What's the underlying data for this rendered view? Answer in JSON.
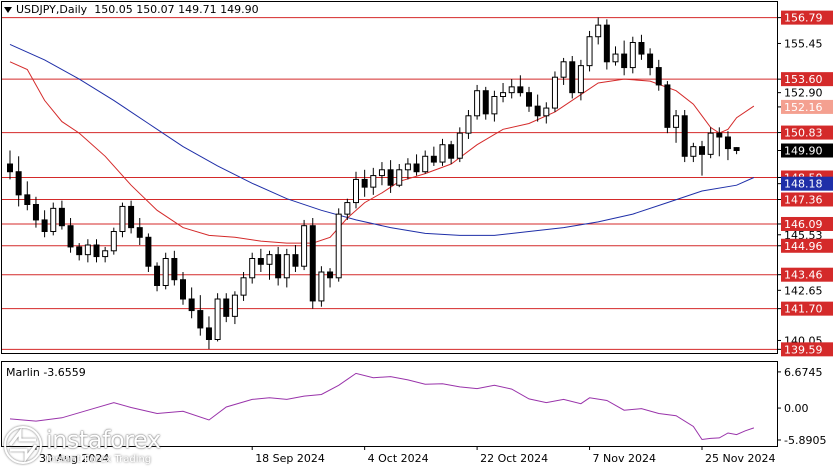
{
  "header": {
    "symbol": "USDJPY,Daily",
    "ohlc": "150.05 150.07 149.71 149.90"
  },
  "indicator": {
    "label": "Marlin -3.6559"
  },
  "watermark": {
    "brand": "instaforex",
    "tagline": "Instant Forex Trading"
  },
  "colors": {
    "bull": "#ffffff",
    "bear": "#000000",
    "ma_fast": "#d42a2a",
    "ma_slow": "#1f2fa8",
    "levels": "#d42a2a",
    "marlin": "#9933aa",
    "grid_border": "#000000"
  },
  "chart_data": [
    {
      "type": "candlestick",
      "title": "USDJPY,Daily",
      "ylim": [
        139.4,
        157.6
      ],
      "y_ticks": [
        {
          "value": 156.79,
          "label": "156.79",
          "highlight": "level"
        },
        {
          "value": 155.45,
          "label": "155.45"
        },
        {
          "value": 153.6,
          "label": "153.60",
          "highlight": "level"
        },
        {
          "value": 152.9,
          "label": "152.90"
        },
        {
          "value": 152.16,
          "label": "152.16",
          "highlight": "ma"
        },
        {
          "value": 150.83,
          "label": "150.83",
          "highlight": "level"
        },
        {
          "value": 149.9,
          "label": "149.90",
          "highlight": "price"
        },
        {
          "value": 148.5,
          "label": "148.50",
          "highlight": "level"
        },
        {
          "value": 148.18,
          "label": "148.18",
          "highlight": "ma_slow"
        },
        {
          "value": 147.36,
          "label": "147.36",
          "highlight": "level"
        },
        {
          "value": 146.09,
          "label": "146.09",
          "highlight": "level"
        },
        {
          "value": 145.53,
          "label": "145.53"
        },
        {
          "value": 144.96,
          "label": "144.96",
          "highlight": "level"
        },
        {
          "value": 143.46,
          "label": "143.46",
          "highlight": "level"
        },
        {
          "value": 142.65,
          "label": "142.65"
        },
        {
          "value": 141.7,
          "label": "141.70",
          "highlight": "level"
        },
        {
          "value": 140.05,
          "label": "140.05"
        },
        {
          "value": 139.59,
          "label": "139.59",
          "highlight": "level"
        }
      ],
      "levels": [
        156.79,
        153.6,
        150.83,
        148.5,
        147.36,
        146.09,
        144.96,
        143.46,
        141.7,
        139.59
      ],
      "x_labels": [
        {
          "index": 3,
          "label": "30 Aug 2024"
        },
        {
          "index": 28,
          "label": "18 Sep 2024"
        },
        {
          "index": 41,
          "label": "4 Oct 2024"
        },
        {
          "index": 54,
          "label": "22 Oct 2024"
        },
        {
          "index": 67,
          "label": "7 Nov 2024"
        },
        {
          "index": 80,
          "label": "25 Nov 2024"
        }
      ],
      "candles": [
        [
          149.2,
          149.9,
          148.4,
          148.8
        ],
        [
          148.8,
          149.6,
          147.0,
          147.6
        ],
        [
          147.6,
          148.3,
          146.8,
          147.1
        ],
        [
          147.1,
          147.5,
          145.9,
          146.3
        ],
        [
          146.3,
          146.8,
          145.4,
          145.7
        ],
        [
          145.7,
          147.2,
          145.5,
          146.9
        ],
        [
          146.9,
          147.3,
          145.8,
          146.0
        ],
        [
          146.0,
          146.4,
          144.6,
          144.9
        ],
        [
          144.9,
          145.1,
          144.2,
          144.5
        ],
        [
          144.5,
          145.3,
          144.1,
          145.0
        ],
        [
          145.0,
          145.3,
          144.1,
          144.4
        ],
        [
          144.4,
          144.9,
          144.1,
          144.7
        ],
        [
          144.7,
          145.9,
          144.5,
          145.7
        ],
        [
          145.7,
          147.2,
          145.4,
          147.0
        ],
        [
          147.0,
          147.3,
          145.6,
          145.9
        ],
        [
          145.9,
          146.4,
          145.0,
          145.4
        ],
        [
          145.4,
          145.6,
          143.6,
          143.9
        ],
        [
          143.9,
          144.1,
          142.6,
          142.9
        ],
        [
          142.9,
          144.6,
          142.7,
          144.3
        ],
        [
          144.3,
          144.7,
          142.9,
          143.2
        ],
        [
          143.2,
          143.6,
          141.9,
          142.2
        ],
        [
          142.2,
          142.8,
          141.2,
          141.6
        ],
        [
          141.6,
          142.4,
          140.3,
          140.7
        ],
        [
          140.7,
          141.3,
          139.6,
          140.1
        ],
        [
          140.1,
          142.5,
          140.0,
          142.2
        ],
        [
          142.2,
          142.5,
          141.0,
          141.3
        ],
        [
          141.3,
          142.6,
          140.9,
          142.4
        ],
        [
          142.4,
          143.6,
          142.1,
          143.3
        ],
        [
          143.3,
          144.6,
          143.0,
          144.3
        ],
        [
          144.3,
          144.8,
          143.6,
          144.0
        ],
        [
          144.0,
          144.7,
          143.2,
          144.5
        ],
        [
          144.5,
          144.9,
          142.9,
          143.3
        ],
        [
          143.3,
          144.8,
          142.8,
          144.5
        ],
        [
          144.5,
          145.0,
          143.6,
          143.9
        ],
        [
          143.9,
          146.3,
          143.7,
          146.0
        ],
        [
          146.0,
          146.4,
          141.7,
          142.1
        ],
        [
          142.1,
          143.9,
          141.8,
          143.6
        ],
        [
          143.6,
          143.8,
          142.8,
          143.3
        ],
        [
          143.3,
          146.9,
          143.1,
          146.6
        ],
        [
          146.6,
          147.4,
          146.3,
          147.2
        ],
        [
          147.2,
          148.8,
          146.9,
          148.4
        ],
        [
          148.4,
          148.9,
          147.5,
          148.0
        ],
        [
          148.0,
          149.0,
          147.6,
          148.6
        ],
        [
          148.6,
          149.3,
          148.1,
          148.9
        ],
        [
          148.9,
          149.4,
          147.7,
          148.1
        ],
        [
          148.1,
          149.2,
          148.0,
          148.9
        ],
        [
          148.9,
          149.5,
          148.4,
          149.2
        ],
        [
          149.2,
          149.7,
          148.6,
          148.8
        ],
        [
          148.8,
          149.9,
          148.7,
          149.6
        ],
        [
          149.6,
          150.1,
          149.1,
          149.3
        ],
        [
          149.3,
          150.5,
          149.1,
          150.2
        ],
        [
          150.2,
          150.4,
          149.2,
          149.5
        ],
        [
          149.5,
          151.1,
          149.3,
          150.8
        ],
        [
          150.8,
          152.0,
          150.5,
          151.7
        ],
        [
          151.7,
          153.3,
          151.5,
          153.0
        ],
        [
          153.0,
          153.2,
          151.5,
          151.8
        ],
        [
          151.8,
          153.0,
          151.4,
          152.7
        ],
        [
          152.7,
          153.4,
          152.4,
          152.9
        ],
        [
          152.9,
          153.6,
          152.6,
          153.2
        ],
        [
          153.2,
          153.8,
          152.7,
          152.9
        ],
        [
          152.9,
          153.2,
          151.9,
          152.2
        ],
        [
          152.2,
          152.8,
          151.4,
          151.7
        ],
        [
          151.7,
          152.4,
          151.3,
          152.1
        ],
        [
          152.1,
          154.0,
          151.9,
          153.7
        ],
        [
          153.7,
          154.7,
          153.3,
          154.5
        ],
        [
          154.5,
          154.8,
          152.6,
          152.9
        ],
        [
          152.9,
          154.6,
          152.5,
          154.3
        ],
        [
          154.3,
          156.1,
          154.0,
          155.8
        ],
        [
          155.8,
          156.8,
          155.4,
          156.4
        ],
        [
          156.4,
          156.7,
          154.1,
          154.5
        ],
        [
          154.5,
          155.3,
          154.3,
          154.9
        ],
        [
          154.9,
          155.6,
          153.8,
          154.2
        ],
        [
          154.2,
          155.8,
          153.9,
          155.5
        ],
        [
          155.5,
          155.9,
          154.6,
          154.9
        ],
        [
          154.9,
          155.2,
          153.8,
          154.2
        ],
        [
          154.2,
          154.6,
          153.0,
          153.3
        ],
        [
          153.3,
          153.5,
          150.8,
          151.1
        ],
        [
          151.1,
          152.0,
          150.3,
          151.7
        ],
        [
          151.7,
          152.0,
          149.3,
          149.6
        ],
        [
          149.6,
          150.3,
          149.3,
          150.1
        ],
        [
          150.1,
          150.4,
          148.6,
          149.7
        ],
        [
          149.7,
          151.1,
          149.5,
          150.8
        ],
        [
          150.8,
          151.1,
          149.6,
          150.6
        ],
        [
          150.6,
          150.9,
          149.4,
          150.0
        ],
        [
          150.05,
          150.07,
          149.71,
          149.9
        ]
      ],
      "ma_fast": [
        [
          0,
          154.5
        ],
        [
          2,
          154.1
        ],
        [
          4,
          152.5
        ],
        [
          6,
          151.4
        ],
        [
          8,
          150.8
        ],
        [
          11,
          149.6
        ],
        [
          14,
          148.1
        ],
        [
          17,
          146.8
        ],
        [
          20,
          145.9
        ],
        [
          23,
          145.5
        ],
        [
          26,
          145.4
        ],
        [
          29,
          145.2
        ],
        [
          32,
          145.1
        ],
        [
          35,
          145.1
        ],
        [
          37,
          145.4
        ],
        [
          39,
          146.4
        ],
        [
          41,
          147.2
        ],
        [
          43,
          147.7
        ],
        [
          45,
          148.3
        ],
        [
          48,
          148.7
        ],
        [
          51,
          149.2
        ],
        [
          54,
          150.2
        ],
        [
          57,
          151.0
        ],
        [
          60,
          151.3
        ],
        [
          63,
          151.9
        ],
        [
          66,
          152.8
        ],
        [
          68,
          153.4
        ],
        [
          71,
          153.6
        ],
        [
          74,
          153.5
        ],
        [
          77,
          153.0
        ],
        [
          79,
          152.3
        ],
        [
          80,
          151.7
        ],
        [
          81,
          151.1
        ],
        [
          82,
          150.8
        ],
        [
          83,
          151.0
        ],
        [
          84,
          151.6
        ],
        [
          86,
          152.2
        ]
      ],
      "ma_slow": [
        [
          0,
          155.4
        ],
        [
          4,
          154.6
        ],
        [
          8,
          153.6
        ],
        [
          12,
          152.5
        ],
        [
          16,
          151.3
        ],
        [
          20,
          150.1
        ],
        [
          24,
          149.1
        ],
        [
          28,
          148.2
        ],
        [
          32,
          147.4
        ],
        [
          36,
          146.8
        ],
        [
          40,
          146.3
        ],
        [
          44,
          145.9
        ],
        [
          48,
          145.6
        ],
        [
          52,
          145.5
        ],
        [
          56,
          145.5
        ],
        [
          60,
          145.7
        ],
        [
          64,
          145.9
        ],
        [
          68,
          146.2
        ],
        [
          72,
          146.6
        ],
        [
          76,
          147.2
        ],
        [
          80,
          147.8
        ],
        [
          84,
          148.1
        ],
        [
          86,
          148.5
        ]
      ]
    },
    {
      "type": "line",
      "title": "Marlin -3.6559",
      "ylim": [
        -7.0,
        8.5
      ],
      "y_ticks": [
        {
          "value": 6.6745,
          "label": "6.6745"
        },
        {
          "value": 0.0,
          "label": "0.00"
        },
        {
          "value": -5.8905,
          "label": "-5.8905"
        }
      ],
      "series": [
        [
          0,
          -2.0
        ],
        [
          3,
          -2.4
        ],
        [
          6,
          -1.8
        ],
        [
          9,
          -0.4
        ],
        [
          12,
          1.0
        ],
        [
          14,
          0.1
        ],
        [
          17,
          -1.0
        ],
        [
          20,
          -0.6
        ],
        [
          23,
          -2.2
        ],
        [
          25,
          0.2
        ],
        [
          28,
          1.6
        ],
        [
          30,
          1.9
        ],
        [
          32,
          1.6
        ],
        [
          34,
          2.2
        ],
        [
          36,
          2.5
        ],
        [
          38,
          4.2
        ],
        [
          39,
          5.3
        ],
        [
          40,
          6.4
        ],
        [
          42,
          5.6
        ],
        [
          44,
          5.8
        ],
        [
          46,
          5.2
        ],
        [
          48,
          4.4
        ],
        [
          50,
          4.5
        ],
        [
          52,
          3.9
        ],
        [
          54,
          3.6
        ],
        [
          56,
          4.2
        ],
        [
          58,
          3.5
        ],
        [
          60,
          1.7
        ],
        [
          62,
          1.0
        ],
        [
          64,
          1.6
        ],
        [
          66,
          0.8
        ],
        [
          67,
          1.9
        ],
        [
          69,
          1.4
        ],
        [
          71,
          -0.4
        ],
        [
          73,
          -0.1
        ],
        [
          75,
          -1.0
        ],
        [
          77,
          -1.4
        ],
        [
          79,
          -3.4
        ],
        [
          80,
          -5.8
        ],
        [
          81,
          -5.6
        ],
        [
          82,
          -5.5
        ],
        [
          83,
          -4.6
        ],
        [
          84,
          -4.9
        ],
        [
          85,
          -4.2
        ],
        [
          86,
          -3.66
        ]
      ]
    }
  ]
}
